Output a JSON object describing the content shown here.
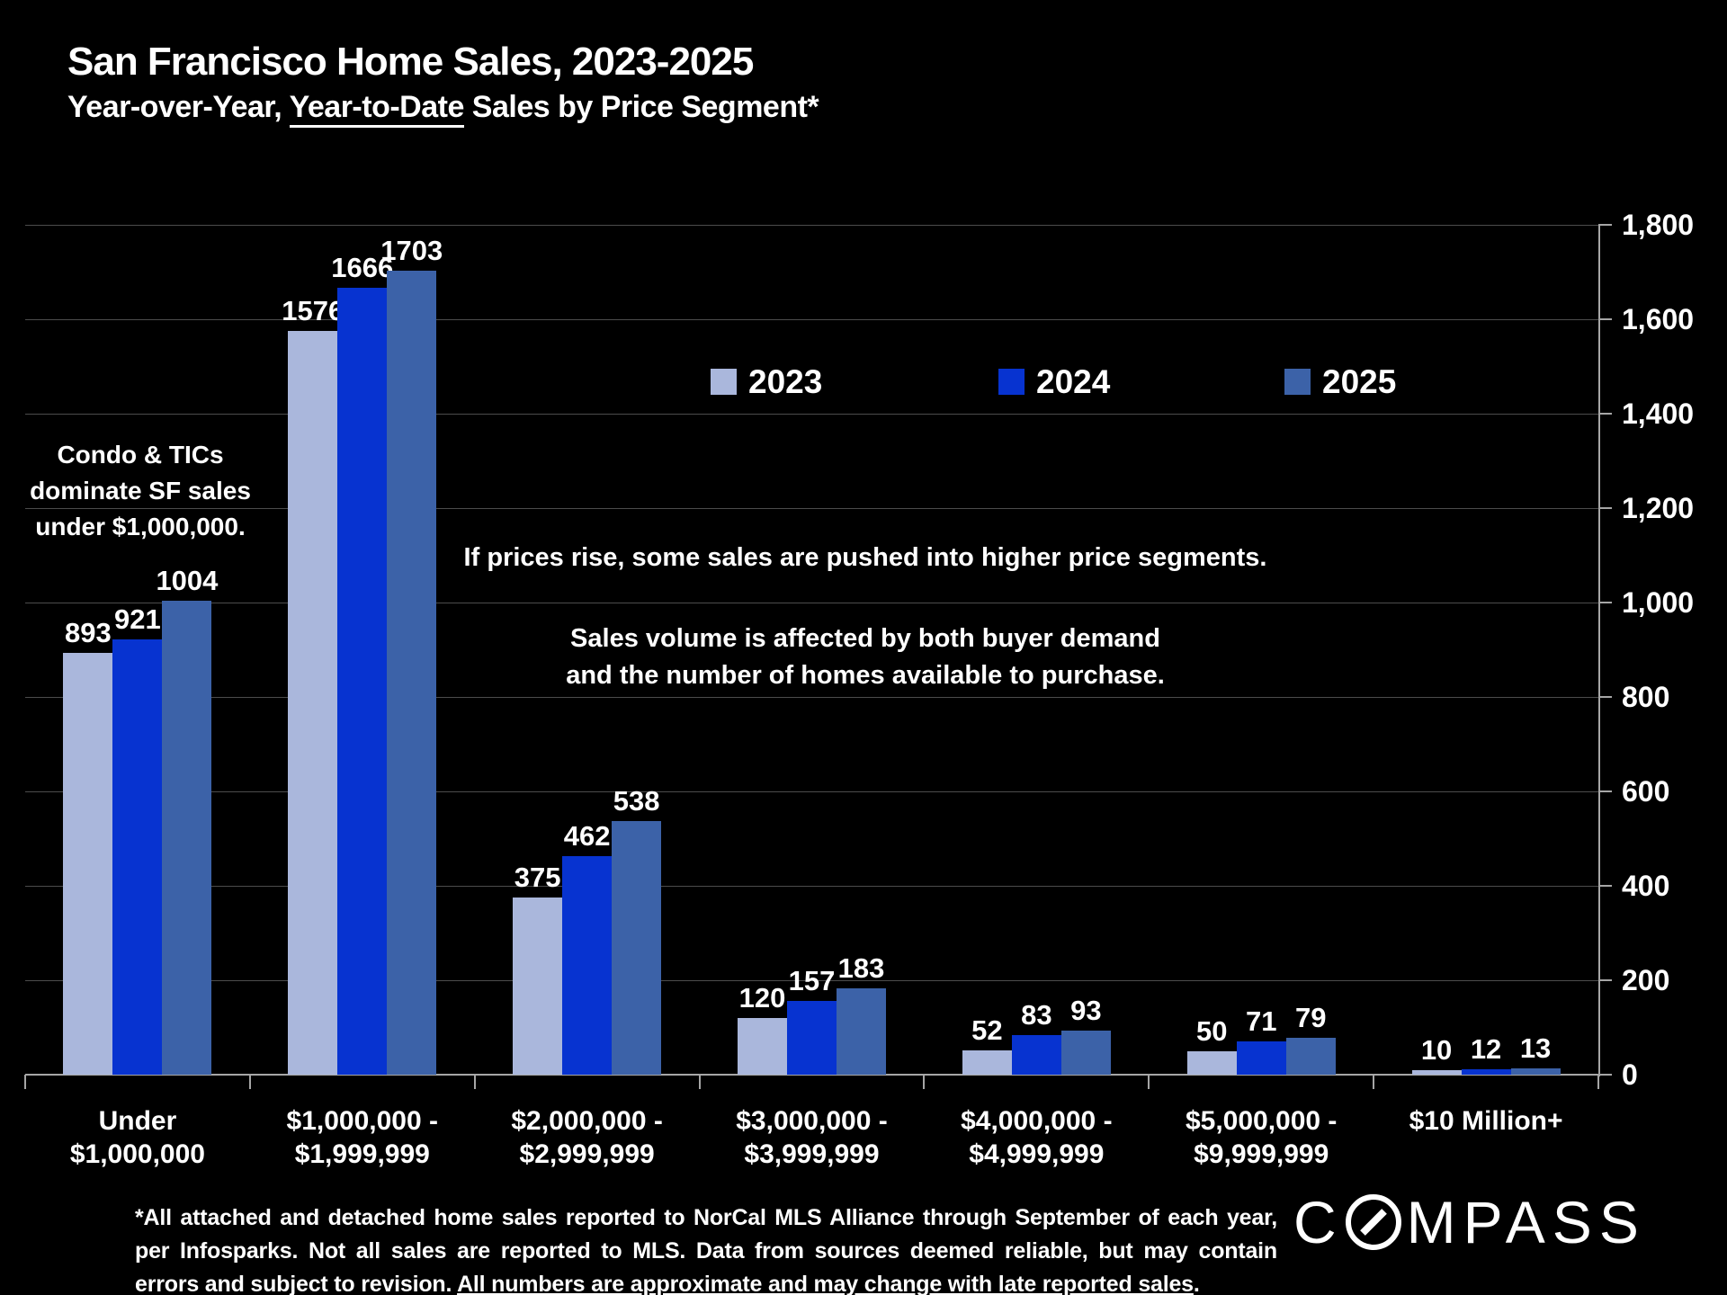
{
  "slide": {
    "title": "San Francisco Home Sales, 2023-2025",
    "subtitle_pre": "Year-over-Year, ",
    "subtitle_underline": "Year-to-Date",
    "subtitle_post": " Sales by Price Segment*",
    "annotations": {
      "condo_line1": "Condo & TICs",
      "condo_line2": "dominate SF sales",
      "condo_line3": "under $1,000,000.",
      "push": "If prices rise, some sales are pushed into higher price segments.",
      "volume_line1": "Sales volume is affected by both buyer demand",
      "volume_line2": "and the number of homes available to purchase."
    },
    "footnote_line1": "*All attached and detached home sales reported to NorCal MLS Alliance through September of each year,",
    "footnote_line2": "per Infosparks. Not all sales are reported to MLS. Data from sources deemed reliable, but may contain",
    "footnote_line3_pre": "errors and subject to revision. ",
    "footnote_line3_underline": "All numbers are approximate and may change with late reported sales",
    "footnote_line3_post": ".",
    "logo_pre": "C",
    "logo_post": "MPASS"
  },
  "colors": {
    "background": "#000000",
    "text": "#ffffff",
    "gridline": "#4c4c4c",
    "axis": "#a6a6a6",
    "series_2023": "#aab7dc",
    "series_2024": "#0733d0",
    "series_2025": "#3c62a8"
  },
  "chart_data": {
    "type": "bar",
    "title": "San Francisco Home Sales, 2023-2025 — Year-over-Year, Year-to-Date Sales by Price Segment",
    "categories": [
      [
        "Under",
        "$1,000,000"
      ],
      [
        "$1,000,000 -",
        "$1,999,999"
      ],
      [
        "$2,000,000 -",
        "$2,999,999"
      ],
      [
        "$3,000,000 -",
        "$3,999,999"
      ],
      [
        "$4,000,000 -",
        "$4,999,999"
      ],
      [
        "$5,000,000 -",
        "$9,999,999"
      ],
      [
        "$10 Million+",
        ""
      ]
    ],
    "series": [
      {
        "name": "2023",
        "color": "#aab7dc",
        "values": [
          893,
          1576,
          375,
          120,
          52,
          50,
          10
        ]
      },
      {
        "name": "2024",
        "color": "#0733d0",
        "values": [
          921,
          1666,
          462,
          157,
          83,
          71,
          12
        ]
      },
      {
        "name": "2025",
        "color": "#3c62a8",
        "values": [
          1004,
          1703,
          538,
          183,
          93,
          79,
          13
        ]
      }
    ],
    "xlabel": "Price Segment",
    "ylabel": "",
    "ylim": [
      0,
      1800
    ],
    "ytick_step": 200,
    "grid": true,
    "y_axis_side": "right",
    "legend_position": "upper-center"
  }
}
